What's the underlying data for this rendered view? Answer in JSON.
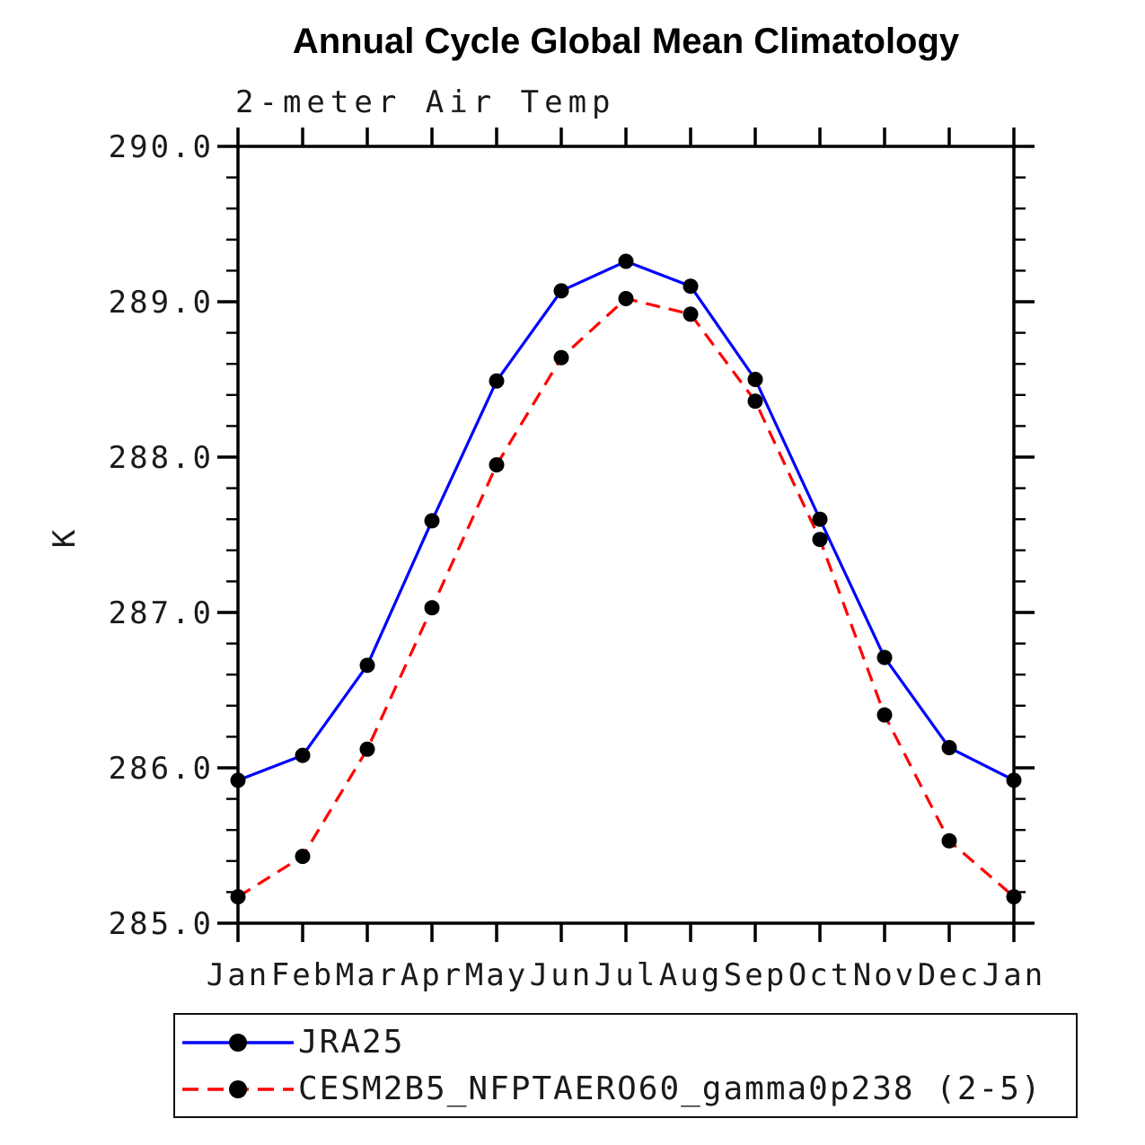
{
  "chart_data": {
    "type": "line",
    "title": "Annual Cycle Global Mean Climatology",
    "subtitle": "2-meter Air Temp",
    "ylabel": "K",
    "xlabel": "",
    "categories": [
      "Jan",
      "Feb",
      "Mar",
      "Apr",
      "May",
      "Jun",
      "Jul",
      "Aug",
      "Sep",
      "Oct",
      "Nov",
      "Dec",
      "Jan"
    ],
    "ylim": [
      285.0,
      290.0
    ],
    "ytick_values": [
      285.0,
      286.0,
      287.0,
      288.0,
      289.0,
      290.0
    ],
    "ytick_labels": [
      "285.0",
      "286.0",
      "287.0",
      "288.0",
      "289.0",
      "290.0"
    ],
    "ytick_minor_step": 0.2,
    "grid": false,
    "frame": "full-box-outward-ticks",
    "legend_position": "bottom-left-box",
    "axis_color": "#000000",
    "marker_color": "#000000",
    "series": [
      {
        "name": "JRA25",
        "color": "#0000ff",
        "style": "solid",
        "marker": "filled-circle",
        "values": [
          285.92,
          286.08,
          286.66,
          287.59,
          288.49,
          289.07,
          289.26,
          289.1,
          288.5,
          287.6,
          286.71,
          286.13,
          285.92
        ]
      },
      {
        "name": "CESM2B5_NFPTAERO60_gamma0p238 (2-5)",
        "color": "#ff0000",
        "style": "dashed",
        "marker": "filled-circle",
        "values": [
          285.17,
          285.43,
          286.12,
          287.03,
          287.95,
          288.64,
          289.02,
          288.92,
          288.36,
          287.47,
          286.34,
          285.53,
          285.17
        ]
      }
    ]
  }
}
